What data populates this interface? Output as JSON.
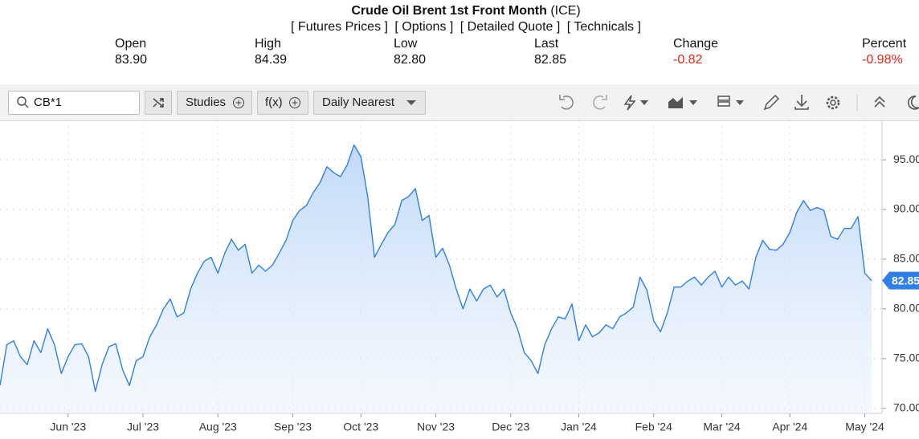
{
  "header": {
    "title": "Crude Oil Brent 1st Front Month",
    "exchange": "(ICE)",
    "links": [
      "[ Futures Prices ]",
      "[ Options ]",
      "[ Detailed Quote ]",
      "[ Technicals ]"
    ]
  },
  "quote": [
    {
      "label": "Open",
      "value": "83.90"
    },
    {
      "label": "High",
      "value": "84.39"
    },
    {
      "label": "Low",
      "value": "82.80"
    },
    {
      "label": "Last",
      "value": "82.85"
    },
    {
      "label": "Change",
      "value": "-0.82"
    },
    {
      "label": "Percent",
      "value": "-0.98%"
    }
  ],
  "toolbar": {
    "symbol": "CB*1",
    "studies": "Studies",
    "fx": "f(x)",
    "interval": "Daily Nearest"
  },
  "chart_data": {
    "type": "line",
    "color": "#2f7fe6",
    "categories": [
      null,
      null,
      null,
      null,
      null,
      null,
      null,
      null,
      null,
      null,
      "Jun '23",
      null,
      null,
      null,
      null,
      null,
      null,
      null,
      null,
      null,
      null,
      "Jul '23",
      null,
      null,
      null,
      null,
      null,
      null,
      null,
      null,
      null,
      null,
      "Aug '23",
      null,
      null,
      null,
      null,
      null,
      null,
      null,
      null,
      null,
      null,
      "Sep '23",
      null,
      null,
      null,
      null,
      null,
      null,
      null,
      null,
      null,
      "Oct '23",
      null,
      null,
      null,
      null,
      null,
      null,
      null,
      null,
      null,
      null,
      "Nov '23",
      null,
      null,
      null,
      null,
      null,
      null,
      null,
      null,
      null,
      null,
      "Dec '23",
      null,
      null,
      null,
      null,
      null,
      null,
      null,
      null,
      null,
      "Jan '24",
      null,
      null,
      null,
      null,
      null,
      null,
      null,
      null,
      null,
      null,
      "Feb '24",
      null,
      null,
      null,
      null,
      null,
      null,
      null,
      null,
      null,
      "Mar '24",
      null,
      null,
      null,
      null,
      null,
      null,
      null,
      null,
      null,
      "Apr '24",
      null,
      null,
      null,
      null,
      null,
      null,
      null,
      null,
      null,
      null,
      "May '24",
      null
    ],
    "values": [
      72.3,
      76.4,
      76.8,
      75.2,
      74.4,
      76.8,
      75.6,
      78.0,
      76.4,
      73.5,
      75.2,
      76.4,
      76.5,
      75.2,
      71.7,
      74.4,
      76.2,
      76.5,
      73.9,
      72.3,
      74.8,
      75.2,
      77.2,
      78.4,
      80.0,
      81.0,
      79.2,
      79.6,
      82.0,
      83.6,
      84.8,
      85.2,
      83.6,
      85.6,
      87.0,
      85.9,
      86.5,
      83.6,
      84.4,
      83.8,
      84.4,
      85.6,
      86.9,
      88.9,
      89.9,
      90.4,
      91.7,
      92.7,
      94.3,
      93.7,
      93.3,
      94.5,
      96.5,
      95.3,
      91.3,
      85.2,
      86.5,
      87.7,
      88.5,
      90.9,
      91.3,
      92.1,
      88.9,
      89.4,
      85.2,
      86.1,
      84.4,
      82.0,
      80.0,
      82.0,
      80.8,
      82.0,
      82.4,
      81.2,
      82.0,
      79.6,
      78.0,
      75.6,
      74.8,
      73.5,
      76.4,
      78.0,
      79.2,
      79.0,
      80.5,
      76.8,
      78.4,
      77.2,
      77.6,
      78.4,
      78.0,
      79.2,
      79.6,
      80.2,
      83.2,
      81.9,
      78.8,
      77.7,
      79.6,
      82.2,
      82.2,
      82.8,
      83.2,
      82.4,
      83.2,
      83.8,
      82.2,
      83.2,
      82.4,
      82.8,
      82.0,
      85.2,
      86.9,
      86.0,
      85.9,
      86.5,
      87.7,
      89.7,
      90.9,
      89.9,
      90.2,
      89.9,
      87.3,
      87.0,
      88.1,
      88.1,
      89.3,
      83.6,
      82.85
    ],
    "ylim": [
      69.5,
      98.8
    ],
    "yticks": [
      {
        "value": 70,
        "label": "70.00"
      },
      {
        "value": 75,
        "label": "75.00"
      },
      {
        "value": 80,
        "label": "80.00"
      },
      {
        "value": 85,
        "label": "85.00"
      },
      {
        "value": 90,
        "label": "90.00"
      },
      {
        "value": 95,
        "label": "95.00"
      }
    ],
    "grid": true
  }
}
